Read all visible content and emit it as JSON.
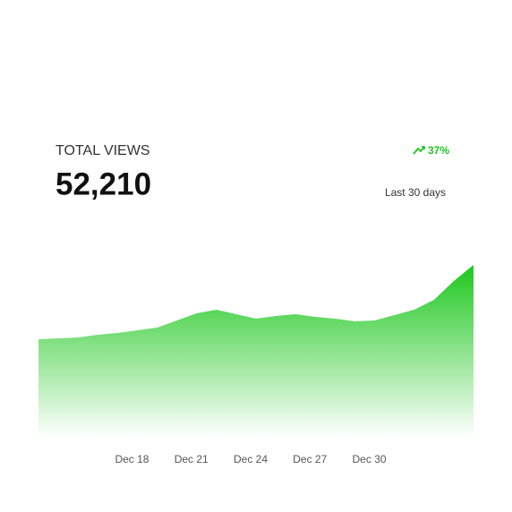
{
  "header": {
    "title": "TOTAL VIEWS",
    "total": "52,210",
    "change": "37%",
    "period": "Last 30 days"
  },
  "chart_data": {
    "type": "area",
    "color": "#1ec71e",
    "categories": [
      null,
      null,
      null,
      null,
      null,
      "Dec 18",
      null,
      null,
      "Dec 21",
      null,
      null,
      "Dec 24",
      null,
      null,
      "Dec 27",
      null,
      null,
      "Dec 30",
      null,
      null,
      null,
      null,
      null
    ],
    "values": [
      111,
      112,
      113,
      116,
      118,
      121,
      124,
      132,
      140,
      144,
      139,
      134,
      137,
      139,
      136,
      134,
      131,
      132,
      138,
      144,
      155,
      176,
      194
    ]
  }
}
